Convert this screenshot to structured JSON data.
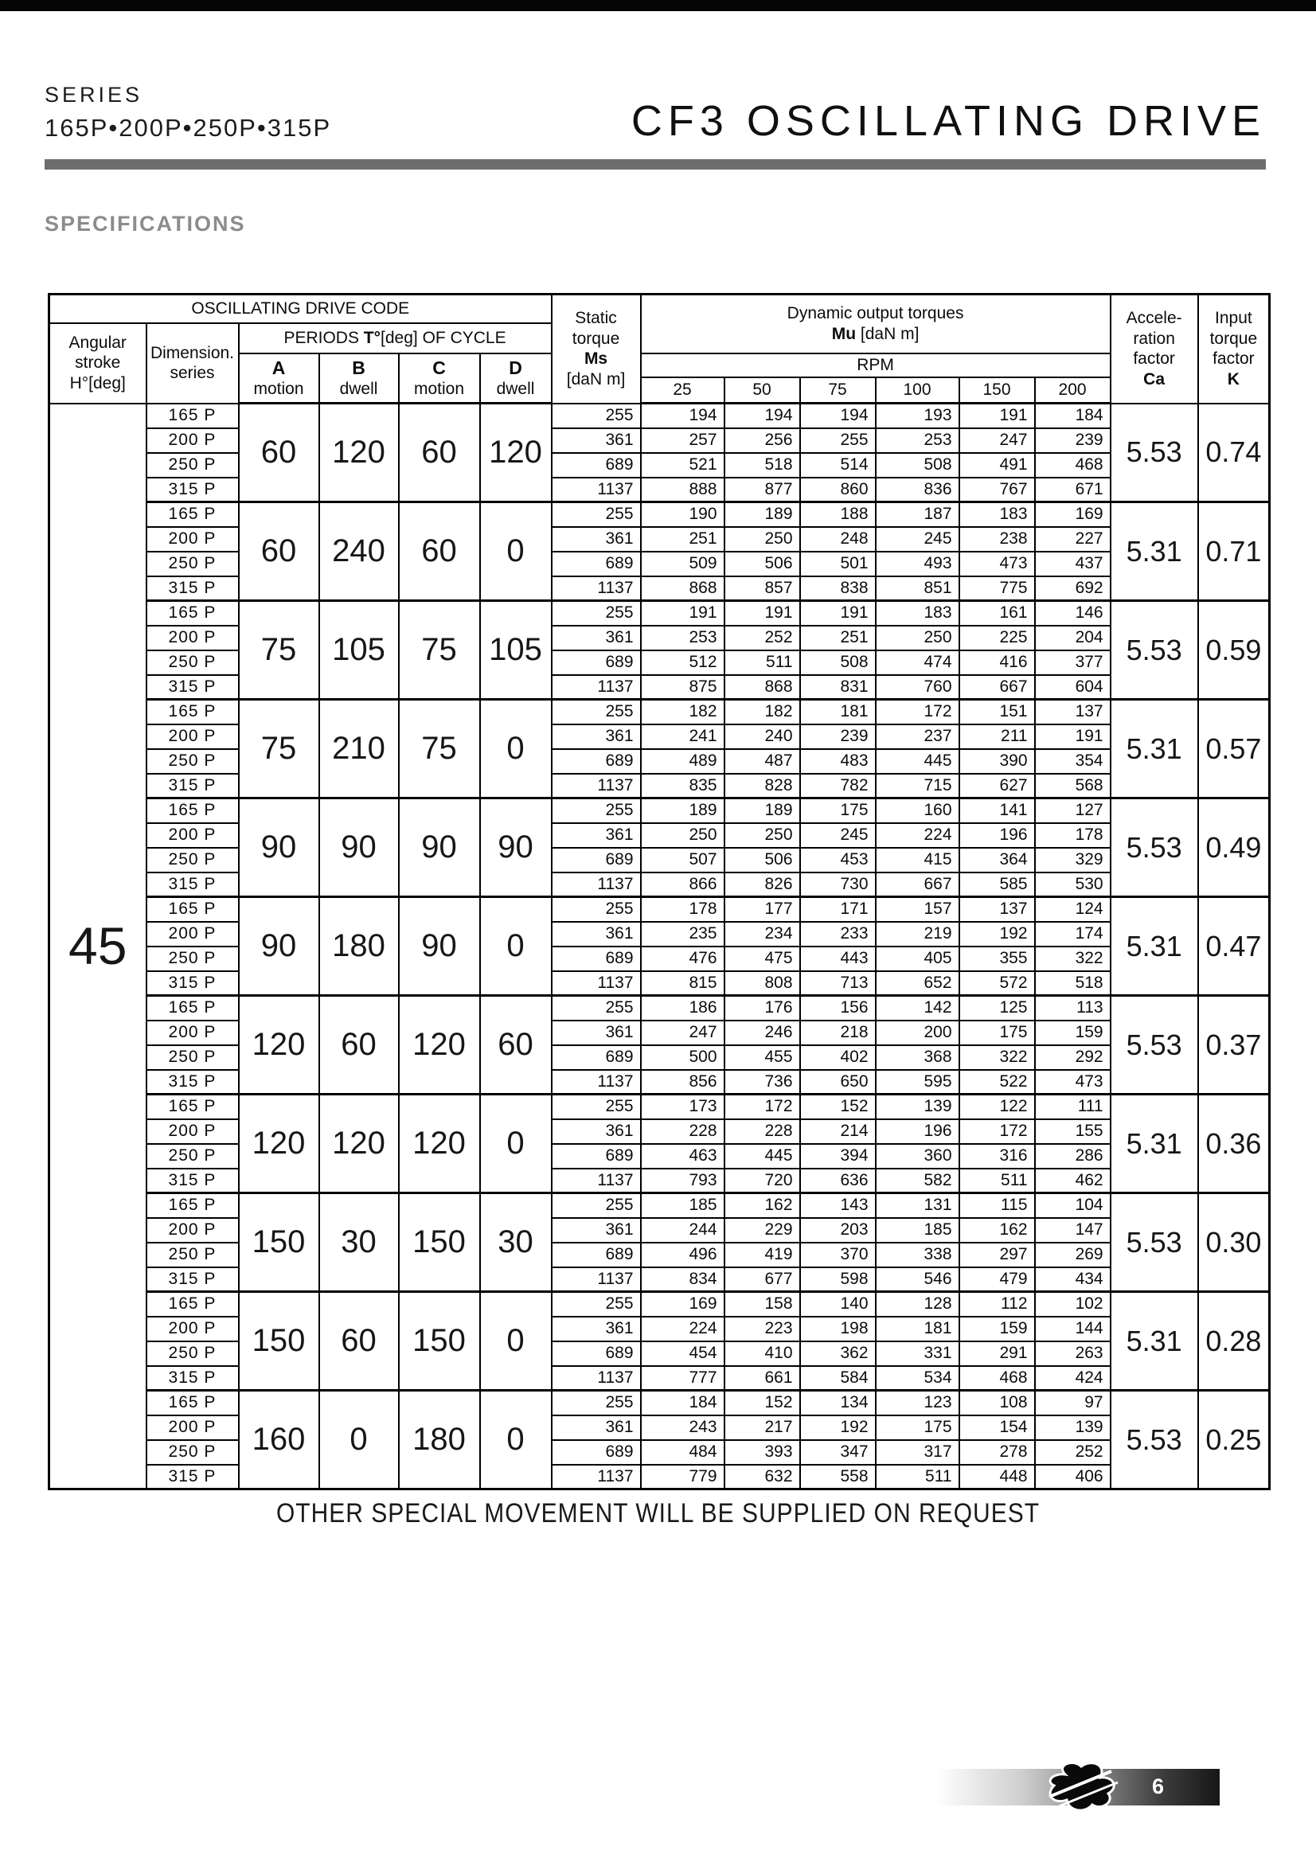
{
  "page": {
    "series_label": "SERIES",
    "series_models": "165P•200P•250P•315P",
    "title": "CF3 OSCILLATING DRIVE",
    "section_heading": "SPECIFICATIONS",
    "footer_note": "OTHER SPECIAL MOVEMENT WILL BE SUPPLIED ON REQUEST",
    "page_number": "6",
    "accent_colors": {
      "bar_black": "#050505",
      "rule_gray": "#6d6d6d",
      "heading_gray": "#8c8c8c"
    }
  },
  "table": {
    "header": {
      "drive_code": "OSCILLATING DRIVE CODE",
      "angular_stroke": {
        "l1": "Angular",
        "l2": "stroke",
        "l3": "H°[deg]"
      },
      "dimension_series": {
        "l1": "Dimension.",
        "l2": "series"
      },
      "periods": {
        "p1": "PERIODS ",
        "p2": "T°",
        "p3": "[deg] OF CYCLE"
      },
      "period_cols": [
        {
          "letter": "A",
          "type": "motion"
        },
        {
          "letter": "B",
          "type": "dwell"
        },
        {
          "letter": "C",
          "type": "motion"
        },
        {
          "letter": "D",
          "type": "dwell"
        }
      ],
      "static_torque": {
        "l1": "Static",
        "l2": "torque",
        "l3": "Ms",
        "l4": "[daN m]"
      },
      "dynamic_line1": "Dynamic output torques",
      "mu": "Mu",
      "mu_unit": " [daN m]",
      "rpm_label": "RPM",
      "rpm_values": [
        "25",
        "50",
        "75",
        "100",
        "150",
        "200"
      ],
      "acceleration": {
        "l1": "Accele-",
        "l2": "ration",
        "l3": "factor",
        "l4": "Ca"
      },
      "input_torque": {
        "l1": "Input",
        "l2": "torque",
        "l3": "factor",
        "l4": "K"
      }
    },
    "angular_stroke_value": "45",
    "groups": [
      {
        "a": "60",
        "b": "120",
        "c": "60",
        "d": "120",
        "ca": "5.53",
        "k": "0.74",
        "rows": [
          {
            "series": "165 P",
            "ms": "255",
            "rpm": [
              "194",
              "194",
              "194",
              "193",
              "191",
              "184"
            ]
          },
          {
            "series": "200 P",
            "ms": "361",
            "rpm": [
              "257",
              "256",
              "255",
              "253",
              "247",
              "239"
            ]
          },
          {
            "series": "250 P",
            "ms": "689",
            "rpm": [
              "521",
              "518",
              "514",
              "508",
              "491",
              "468"
            ]
          },
          {
            "series": "315 P",
            "ms": "1137",
            "rpm": [
              "888",
              "877",
              "860",
              "836",
              "767",
              "671"
            ]
          }
        ]
      },
      {
        "a": "60",
        "b": "240",
        "c": "60",
        "d": "0",
        "ca": "5.31",
        "k": "0.71",
        "rows": [
          {
            "series": "165 P",
            "ms": "255",
            "rpm": [
              "190",
              "189",
              "188",
              "187",
              "183",
              "169"
            ]
          },
          {
            "series": "200 P",
            "ms": "361",
            "rpm": [
              "251",
              "250",
              "248",
              "245",
              "238",
              "227"
            ]
          },
          {
            "series": "250 P",
            "ms": "689",
            "rpm": [
              "509",
              "506",
              "501",
              "493",
              "473",
              "437"
            ]
          },
          {
            "series": "315 P",
            "ms": "1137",
            "rpm": [
              "868",
              "857",
              "838",
              "851",
              "775",
              "692"
            ]
          }
        ]
      },
      {
        "a": "75",
        "b": "105",
        "c": "75",
        "d": "105",
        "ca": "5.53",
        "k": "0.59",
        "rows": [
          {
            "series": "165 P",
            "ms": "255",
            "rpm": [
              "191",
              "191",
              "191",
              "183",
              "161",
              "146"
            ]
          },
          {
            "series": "200 P",
            "ms": "361",
            "rpm": [
              "253",
              "252",
              "251",
              "250",
              "225",
              "204"
            ]
          },
          {
            "series": "250 P",
            "ms": "689",
            "rpm": [
              "512",
              "511",
              "508",
              "474",
              "416",
              "377"
            ]
          },
          {
            "series": "315 P",
            "ms": "1137",
            "rpm": [
              "875",
              "868",
              "831",
              "760",
              "667",
              "604"
            ]
          }
        ]
      },
      {
        "a": "75",
        "b": "210",
        "c": "75",
        "d": "0",
        "ca": "5.31",
        "k": "0.57",
        "rows": [
          {
            "series": "165 P",
            "ms": "255",
            "rpm": [
              "182",
              "182",
              "181",
              "172",
              "151",
              "137"
            ]
          },
          {
            "series": "200 P",
            "ms": "361",
            "rpm": [
              "241",
              "240",
              "239",
              "237",
              "211",
              "191"
            ]
          },
          {
            "series": "250 P",
            "ms": "689",
            "rpm": [
              "489",
              "487",
              "483",
              "445",
              "390",
              "354"
            ]
          },
          {
            "series": "315 P",
            "ms": "1137",
            "rpm": [
              "835",
              "828",
              "782",
              "715",
              "627",
              "568"
            ]
          }
        ]
      },
      {
        "a": "90",
        "b": "90",
        "c": "90",
        "d": "90",
        "ca": "5.53",
        "k": "0.49",
        "rows": [
          {
            "series": "165 P",
            "ms": "255",
            "rpm": [
              "189",
              "189",
              "175",
              "160",
              "141",
              "127"
            ]
          },
          {
            "series": "200 P",
            "ms": "361",
            "rpm": [
              "250",
              "250",
              "245",
              "224",
              "196",
              "178"
            ]
          },
          {
            "series": "250 P",
            "ms": "689",
            "rpm": [
              "507",
              "506",
              "453",
              "415",
              "364",
              "329"
            ]
          },
          {
            "series": "315 P",
            "ms": "1137",
            "rpm": [
              "866",
              "826",
              "730",
              "667",
              "585",
              "530"
            ]
          }
        ]
      },
      {
        "a": "90",
        "b": "180",
        "c": "90",
        "d": "0",
        "ca": "5.31",
        "k": "0.47",
        "rows": [
          {
            "series": "165 P",
            "ms": "255",
            "rpm": [
              "178",
              "177",
              "171",
              "157",
              "137",
              "124"
            ]
          },
          {
            "series": "200 P",
            "ms": "361",
            "rpm": [
              "235",
              "234",
              "233",
              "219",
              "192",
              "174"
            ]
          },
          {
            "series": "250 P",
            "ms": "689",
            "rpm": [
              "476",
              "475",
              "443",
              "405",
              "355",
              "322"
            ]
          },
          {
            "series": "315 P",
            "ms": "1137",
            "rpm": [
              "815",
              "808",
              "713",
              "652",
              "572",
              "518"
            ]
          }
        ]
      },
      {
        "a": "120",
        "b": "60",
        "c": "120",
        "d": "60",
        "ca": "5.53",
        "k": "0.37",
        "rows": [
          {
            "series": "165 P",
            "ms": "255",
            "rpm": [
              "186",
              "176",
              "156",
              "142",
              "125",
              "113"
            ]
          },
          {
            "series": "200 P",
            "ms": "361",
            "rpm": [
              "247",
              "246",
              "218",
              "200",
              "175",
              "159"
            ]
          },
          {
            "series": "250 P",
            "ms": "689",
            "rpm": [
              "500",
              "455",
              "402",
              "368",
              "322",
              "292"
            ]
          },
          {
            "series": "315 P",
            "ms": "1137",
            "rpm": [
              "856",
              "736",
              "650",
              "595",
              "522",
              "473"
            ]
          }
        ]
      },
      {
        "a": "120",
        "b": "120",
        "c": "120",
        "d": "0",
        "ca": "5.31",
        "k": "0.36",
        "rows": [
          {
            "series": "165 P",
            "ms": "255",
            "rpm": [
              "173",
              "172",
              "152",
              "139",
              "122",
              "111"
            ]
          },
          {
            "series": "200 P",
            "ms": "361",
            "rpm": [
              "228",
              "228",
              "214",
              "196",
              "172",
              "155"
            ]
          },
          {
            "series": "250 P",
            "ms": "689",
            "rpm": [
              "463",
              "445",
              "394",
              "360",
              "316",
              "286"
            ]
          },
          {
            "series": "315 P",
            "ms": "1137",
            "rpm": [
              "793",
              "720",
              "636",
              "582",
              "511",
              "462"
            ]
          }
        ]
      },
      {
        "a": "150",
        "b": "30",
        "c": "150",
        "d": "30",
        "ca": "5.53",
        "k": "0.30",
        "rows": [
          {
            "series": "165 P",
            "ms": "255",
            "rpm": [
              "185",
              "162",
              "143",
              "131",
              "115",
              "104"
            ]
          },
          {
            "series": "200 P",
            "ms": "361",
            "rpm": [
              "244",
              "229",
              "203",
              "185",
              "162",
              "147"
            ]
          },
          {
            "series": "250 P",
            "ms": "689",
            "rpm": [
              "496",
              "419",
              "370",
              "338",
              "297",
              "269"
            ]
          },
          {
            "series": "315 P",
            "ms": "1137",
            "rpm": [
              "834",
              "677",
              "598",
              "546",
              "479",
              "434"
            ]
          }
        ]
      },
      {
        "a": "150",
        "b": "60",
        "c": "150",
        "d": "0",
        "ca": "5.31",
        "k": "0.28",
        "rows": [
          {
            "series": "165 P",
            "ms": "255",
            "rpm": [
              "169",
              "158",
              "140",
              "128",
              "112",
              "102"
            ]
          },
          {
            "series": "200 P",
            "ms": "361",
            "rpm": [
              "224",
              "223",
              "198",
              "181",
              "159",
              "144"
            ]
          },
          {
            "series": "250 P",
            "ms": "689",
            "rpm": [
              "454",
              "410",
              "362",
              "331",
              "291",
              "263"
            ]
          },
          {
            "series": "315 P",
            "ms": "1137",
            "rpm": [
              "777",
              "661",
              "584",
              "534",
              "468",
              "424"
            ]
          }
        ]
      },
      {
        "a": "160",
        "b": "0",
        "c": "180",
        "d": "0",
        "ca": "5.53",
        "k": "0.25",
        "rows": [
          {
            "series": "165 P",
            "ms": "255",
            "rpm": [
              "184",
              "152",
              "134",
              "123",
              "108",
              "97"
            ]
          },
          {
            "series": "200 P",
            "ms": "361",
            "rpm": [
              "243",
              "217",
              "192",
              "175",
              "154",
              "139"
            ]
          },
          {
            "series": "250 P",
            "ms": "689",
            "rpm": [
              "484",
              "393",
              "347",
              "317",
              "278",
              "252"
            ]
          },
          {
            "series": "315 P",
            "ms": "1137",
            "rpm": [
              "779",
              "632",
              "558",
              "511",
              "448",
              "406"
            ]
          }
        ]
      }
    ]
  }
}
